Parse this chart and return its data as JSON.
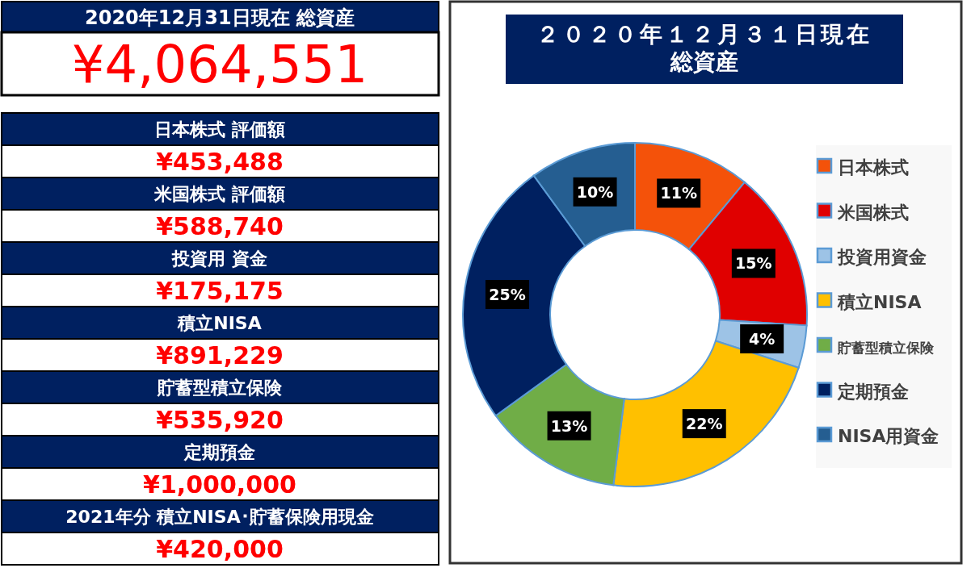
{
  "chart_data": [
    {
      "type": "other",
      "title": "2020年12月31日現在 総資産",
      "subtitle": "¥4,064,551",
      "annotations": [
        "日本株式 評価額",
        "¥453,488",
        "米国株式 評価額",
        "¥588,740",
        "投資用 資金",
        "¥175,175",
        "積立NISA",
        "¥891,229",
        "貯蓄型積立保険",
        "¥535,920",
        "定期預金",
        "¥1,000,000",
        "2021年分 積立NISA･貯蓄保険用現金",
        "¥420,000"
      ]
    },
    {
      "type": "donut",
      "title": "２０２０年１２月３１日現在",
      "subtitle": "総資産",
      "categories": [
        "日本株式",
        "米国株式",
        "投資用資金",
        "積立NISA",
        "貯蓄型積立保険",
        "定期預金",
        "NISA用資金"
      ],
      "values": [
        11,
        15,
        4,
        22,
        13,
        25,
        10
      ],
      "colors": [
        "#f4520a",
        "#e00000",
        "#9dc3e6",
        "#ffc000",
        "#70ad47",
        "#002060",
        "#255e91"
      ],
      "value_labels": [
        "11%",
        "15%",
        "4%",
        "22%",
        "13%",
        "25%",
        "10%"
      ],
      "legend": "right"
    }
  ]
}
